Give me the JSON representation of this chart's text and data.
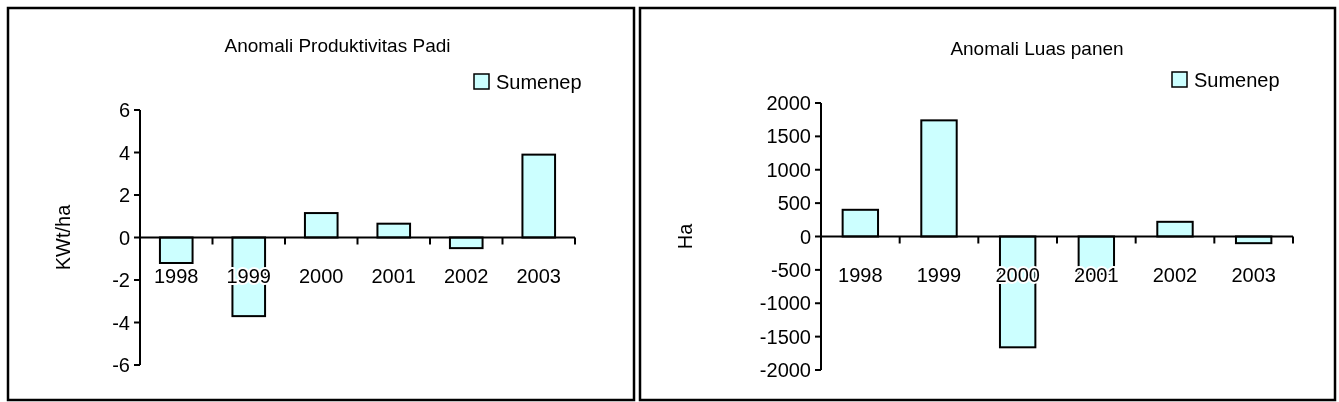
{
  "chart_data": [
    {
      "type": "bar",
      "title": "Anomali Produktivitas Padi",
      "ylabel": "KWt/ha",
      "categories": [
        "1998",
        "1999",
        "2000",
        "2001",
        "2002",
        "2003"
      ],
      "series": [
        {
          "name": "Sumenep",
          "color": "#ccffff",
          "values": [
            -1.2,
            -3.7,
            1.15,
            0.65,
            -0.5,
            3.9
          ]
        }
      ],
      "ylim": [
        -6,
        6
      ],
      "yticks": [
        -6,
        -4,
        -2,
        0,
        2,
        4,
        6
      ],
      "grid": false,
      "legend": "top right"
    },
    {
      "type": "bar",
      "title": "Anomali Luas panen",
      "ylabel": "Ha",
      "categories": [
        "1998",
        "1999",
        "2000",
        "2001",
        "2002",
        "2003"
      ],
      "series": [
        {
          "name": "Sumenep",
          "color": "#ccffff",
          "values": [
            400,
            1740,
            -1660,
            -560,
            220,
            -100
          ]
        }
      ],
      "ylim": [
        -2000,
        2000
      ],
      "yticks": [
        -2000,
        -1500,
        -1000,
        -500,
        0,
        500,
        1000,
        1500,
        2000
      ],
      "grid": false,
      "legend": "top right"
    }
  ]
}
